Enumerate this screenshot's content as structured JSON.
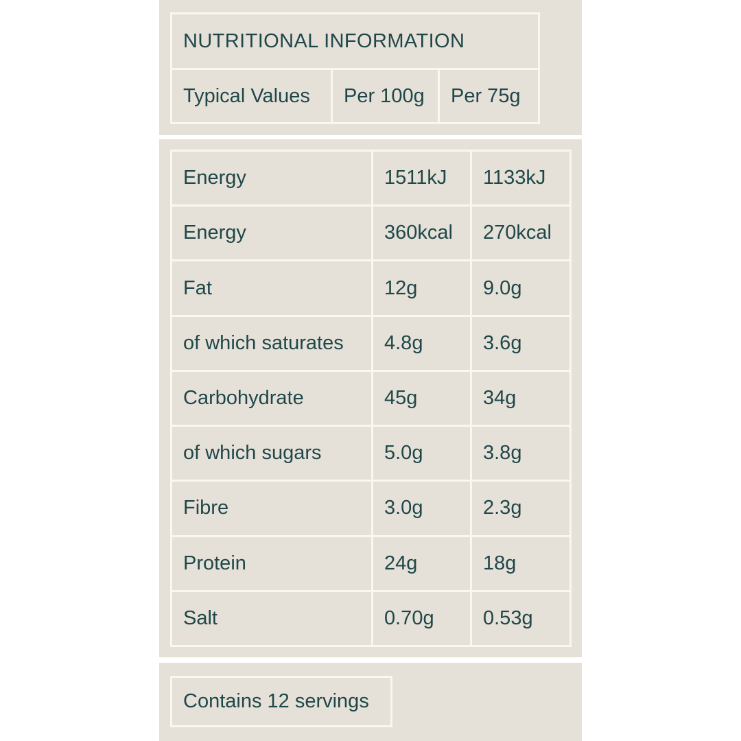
{
  "colors": {
    "background": "#ffffff",
    "panel": "#e6e1d8",
    "border": "#f9f7f2",
    "text": "#1f4749"
  },
  "header": {
    "title": "NUTRITIONAL INFORMATION",
    "columns": [
      "Typical Values",
      "Per 100g",
      "Per 75g"
    ]
  },
  "table": {
    "rows": [
      {
        "label": "Energy",
        "per100g": "1511kJ",
        "per75g": "1133kJ"
      },
      {
        "label": "Energy",
        "per100g": "360kcal",
        "per75g": "270kcal"
      },
      {
        "label": "Fat",
        "per100g": "12g",
        "per75g": "9.0g"
      },
      {
        "label": "of which saturates",
        "per100g": "4.8g",
        "per75g": "3.6g"
      },
      {
        "label": "Carbohydrate",
        "per100g": "45g",
        "per75g": "34g"
      },
      {
        "label": "of which sugars",
        "per100g": "5.0g",
        "per75g": "3.8g"
      },
      {
        "label": "Fibre",
        "per100g": "3.0g",
        "per75g": "2.3g"
      },
      {
        "label": "Protein",
        "per100g": "24g",
        "per75g": "18g"
      },
      {
        "label": "Salt",
        "per100g": "0.70g",
        "per75g": "0.53g"
      }
    ]
  },
  "footer": {
    "servings": "Contains 12 servings"
  }
}
